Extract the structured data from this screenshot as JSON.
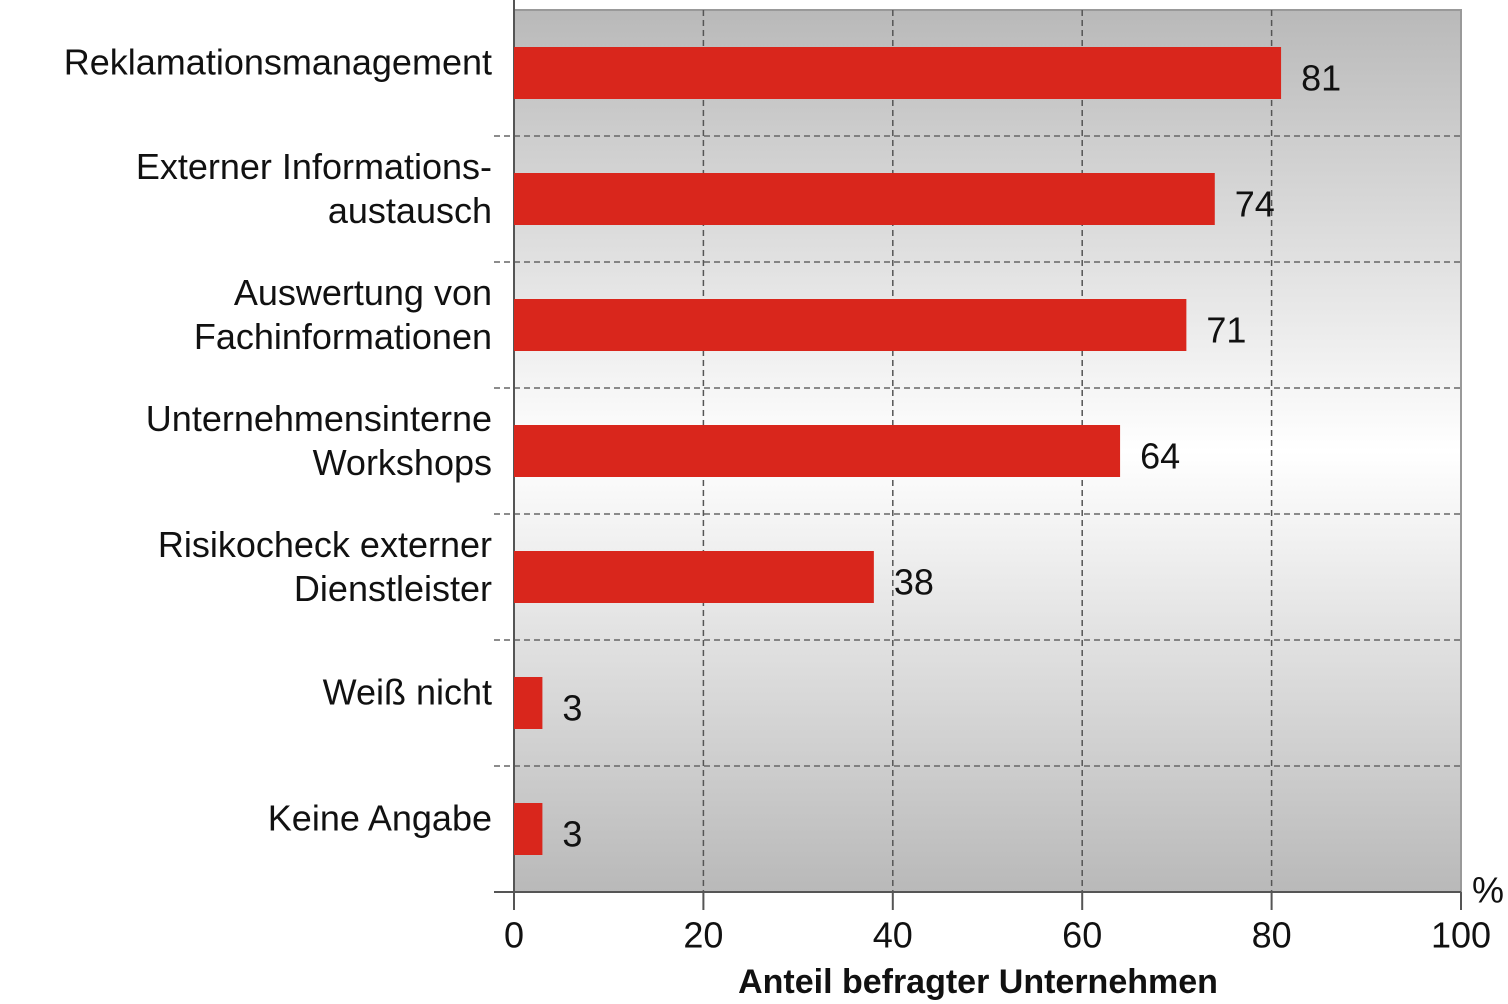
{
  "chart_data": {
    "type": "barh",
    "categories": [
      "Reklamationsmanagement",
      "Externer Informations-\naustausch",
      "Auswertung von\nFachinformationen",
      "Unternehmensinterne\nWorkshops",
      "Risikocheck externer\nDienstleister",
      "Weiß nicht",
      "Keine Angabe"
    ],
    "values": [
      81,
      74,
      71,
      64,
      38,
      3,
      3
    ],
    "color": "#d9261c",
    "xlim": [
      0,
      100
    ],
    "xticks": [
      0,
      20,
      40,
      60,
      80,
      100
    ],
    "x_unit": "%",
    "x_label": "Anteil befragter Unternehmen",
    "grid": true
  }
}
